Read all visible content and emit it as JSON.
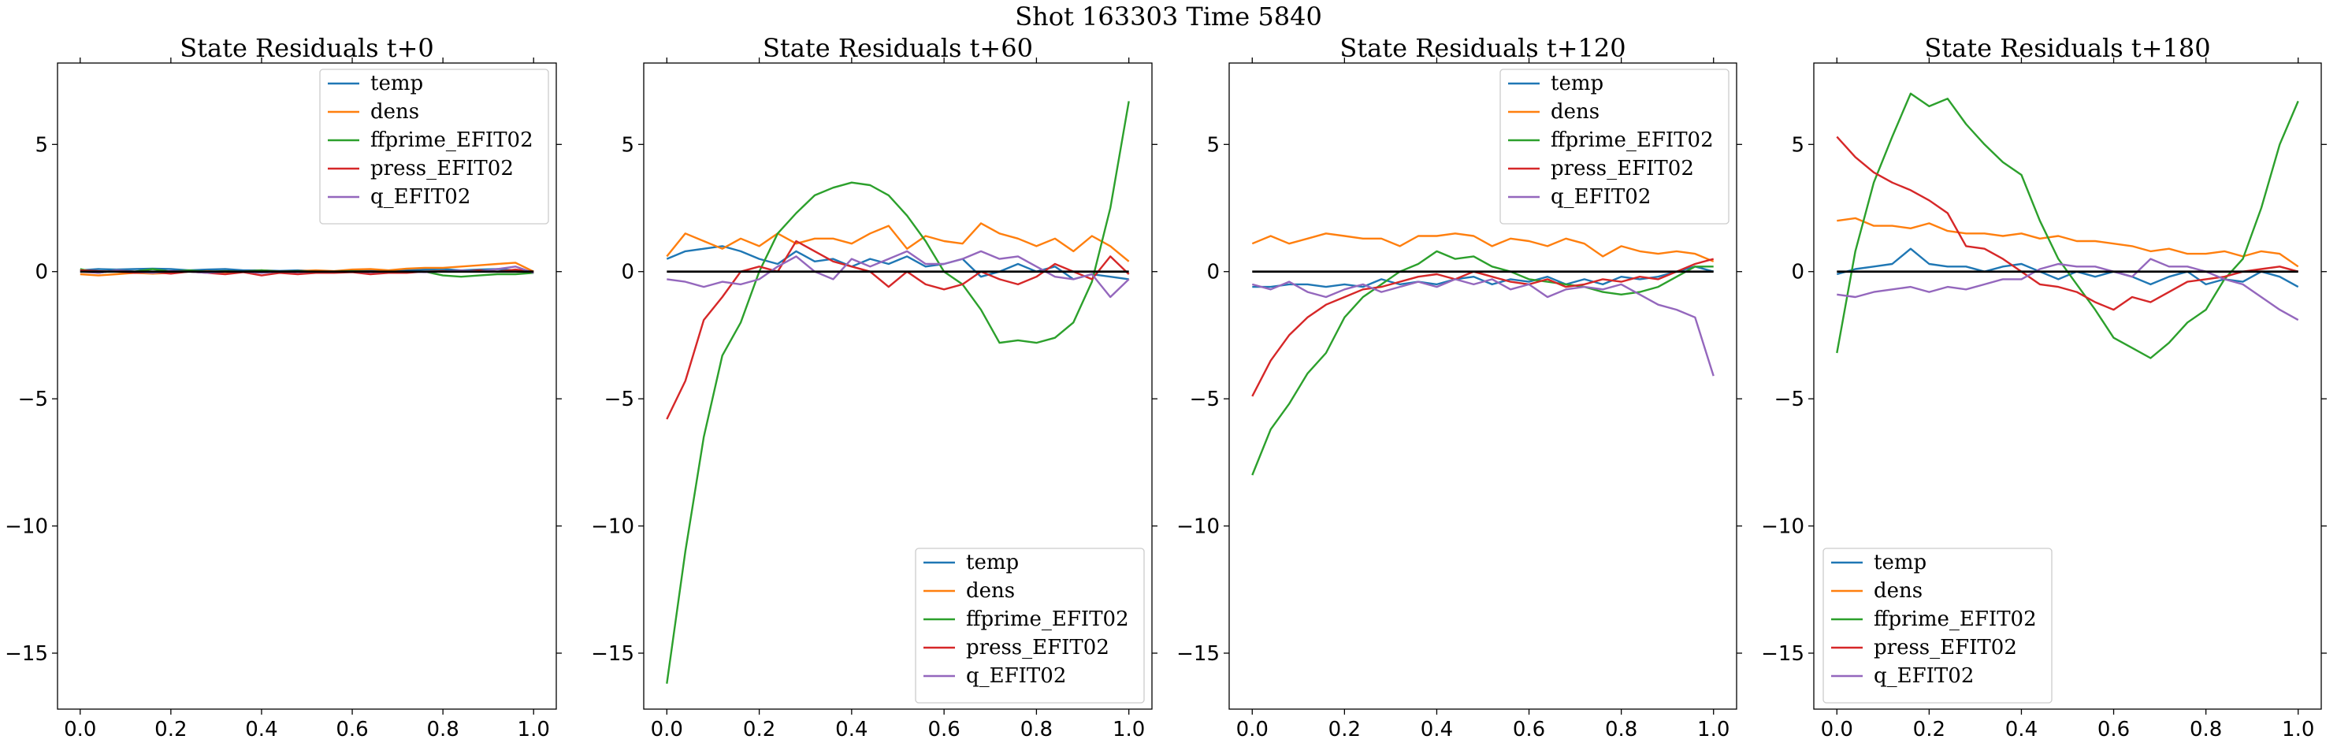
{
  "figure": {
    "suptitle": "Shot 163303   Time 5840"
  },
  "chart_data": [
    {
      "type": "line",
      "title": "State Residuals t+0",
      "xlabel": "",
      "ylabel": "",
      "xlim": [
        -0.05,
        1.05
      ],
      "ylim": [
        -17.2,
        8.2
      ],
      "xticks": [
        0.0,
        0.2,
        0.4,
        0.6,
        0.8,
        1.0
      ],
      "xticklabels": [
        "0.0",
        "0.2",
        "0.4",
        "0.6",
        "0.8",
        "1.0"
      ],
      "yticks": [
        -15,
        -10,
        -5,
        0,
        5
      ],
      "yticklabels": [
        "−15",
        "−10",
        "−5",
        "0",
        "5"
      ],
      "legend": "upper right",
      "grid": false,
      "zero_line": true,
      "x": [
        0.0,
        0.04,
        0.08,
        0.12,
        0.16,
        0.2,
        0.24,
        0.28,
        0.32,
        0.36,
        0.4,
        0.44,
        0.48,
        0.52,
        0.56,
        0.6,
        0.64,
        0.68,
        0.72,
        0.76,
        0.8,
        0.84,
        0.88,
        0.92,
        0.96,
        1.0
      ],
      "series": [
        {
          "name": "temp",
          "color": "#1f77b4",
          "values": [
            0.05,
            0.1,
            0.08,
            0.1,
            0.12,
            0.1,
            0.05,
            0.08,
            0.1,
            0.05,
            0.05,
            0.03,
            0.05,
            0.02,
            0.0,
            0.03,
            0.05,
            0.02,
            0.05,
            0.08,
            0.1,
            0.05,
            0.08,
            0.1,
            0.05,
            -0.05
          ]
        },
        {
          "name": "dens",
          "color": "#ff7f0e",
          "values": [
            -0.1,
            -0.15,
            -0.1,
            -0.05,
            -0.08,
            -0.05,
            0.0,
            0.02,
            -0.02,
            0.0,
            0.05,
            0.0,
            0.02,
            0.05,
            0.02,
            0.08,
            0.1,
            0.05,
            0.12,
            0.15,
            0.15,
            0.2,
            0.25,
            0.3,
            0.35,
            0.0
          ]
        },
        {
          "name": "ffprime_EFIT02",
          "color": "#2ca02c",
          "values": [
            0.1,
            -0.05,
            0.05,
            0.0,
            0.1,
            0.0,
            0.05,
            0.0,
            0.02,
            0.0,
            0.05,
            0.0,
            0.02,
            0.0,
            0.0,
            0.02,
            0.0,
            -0.02,
            0.0,
            0.0,
            -0.15,
            -0.2,
            -0.15,
            -0.1,
            -0.1,
            -0.05
          ]
        },
        {
          "name": "press_EFIT02",
          "color": "#d62728",
          "values": [
            0.05,
            0.02,
            0.0,
            -0.05,
            -0.02,
            -0.08,
            0.0,
            -0.05,
            -0.1,
            -0.02,
            -0.15,
            -0.05,
            -0.1,
            -0.05,
            -0.05,
            -0.02,
            -0.1,
            -0.05,
            -0.05,
            0.0,
            0.02,
            0.0,
            0.05,
            0.0,
            0.08,
            0.0
          ]
        },
        {
          "name": "q_EFIT02",
          "color": "#9467bd",
          "values": [
            0.0,
            -0.05,
            0.05,
            0.0,
            -0.05,
            0.02,
            0.0,
            -0.05,
            0.0,
            0.0,
            -0.05,
            0.0,
            -0.02,
            0.0,
            0.0,
            0.0,
            -0.02,
            0.0,
            0.0,
            -0.02,
            0.0,
            0.05,
            0.0,
            0.1,
            0.2,
            -0.05
          ]
        }
      ]
    },
    {
      "type": "line",
      "title": "State Residuals t+60",
      "xlabel": "",
      "ylabel": "",
      "xlim": [
        -0.05,
        1.05
      ],
      "ylim": [
        -17.2,
        8.2
      ],
      "xticks": [
        0.0,
        0.2,
        0.4,
        0.6,
        0.8,
        1.0
      ],
      "xticklabels": [
        "0.0",
        "0.2",
        "0.4",
        "0.6",
        "0.8",
        "1.0"
      ],
      "yticks": [
        -15,
        -10,
        -5,
        0,
        5
      ],
      "yticklabels": [
        "−15",
        "−10",
        "−5",
        "0",
        "5"
      ],
      "legend": "lower right",
      "grid": false,
      "zero_line": true,
      "x": [
        0.0,
        0.04,
        0.08,
        0.12,
        0.16,
        0.2,
        0.24,
        0.28,
        0.32,
        0.36,
        0.4,
        0.44,
        0.48,
        0.52,
        0.56,
        0.6,
        0.64,
        0.68,
        0.72,
        0.76,
        0.8,
        0.84,
        0.88,
        0.92,
        0.96,
        1.0
      ],
      "series": [
        {
          "name": "temp",
          "color": "#1f77b4",
          "values": [
            0.5,
            0.8,
            0.9,
            1.0,
            0.8,
            0.5,
            0.3,
            0.8,
            0.4,
            0.5,
            0.2,
            0.5,
            0.3,
            0.6,
            0.2,
            0.3,
            0.5,
            -0.2,
            0.0,
            0.3,
            0.0,
            0.2,
            -0.3,
            -0.1,
            -0.2,
            -0.3
          ]
        },
        {
          "name": "dens",
          "color": "#ff7f0e",
          "values": [
            0.6,
            1.5,
            1.2,
            0.9,
            1.3,
            1.0,
            1.5,
            1.1,
            1.3,
            1.3,
            1.1,
            1.5,
            1.8,
            0.9,
            1.4,
            1.2,
            1.1,
            1.9,
            1.5,
            1.3,
            1.0,
            1.3,
            0.8,
            1.4,
            1.0,
            0.4
          ]
        },
        {
          "name": "ffprime_EFIT02",
          "color": "#2ca02c",
          "values": [
            -16.2,
            -11.0,
            -6.5,
            -3.3,
            -2.0,
            0.0,
            1.5,
            2.3,
            3.0,
            3.3,
            3.5,
            3.4,
            3.0,
            2.2,
            1.2,
            0.0,
            -0.5,
            -1.5,
            -2.8,
            -2.7,
            -2.8,
            -2.6,
            -2.0,
            -0.4,
            2.5,
            6.7
          ]
        },
        {
          "name": "press_EFIT02",
          "color": "#d62728",
          "values": [
            -5.8,
            -4.3,
            -1.9,
            -1.0,
            0.0,
            0.2,
            0.0,
            1.2,
            0.8,
            0.4,
            0.2,
            0.0,
            -0.6,
            0.0,
            -0.5,
            -0.7,
            -0.5,
            0.0,
            -0.3,
            -0.5,
            -0.2,
            0.3,
            0.0,
            -0.3,
            0.6,
            -0.1
          ]
        },
        {
          "name": "q_EFIT02",
          "color": "#9467bd",
          "values": [
            -0.3,
            -0.4,
            -0.6,
            -0.4,
            -0.5,
            -0.3,
            0.2,
            0.6,
            0.0,
            -0.3,
            0.5,
            0.2,
            0.5,
            0.8,
            0.3,
            0.3,
            0.5,
            0.8,
            0.5,
            0.6,
            0.2,
            -0.2,
            -0.3,
            -0.1,
            -1.0,
            -0.3
          ]
        }
      ]
    },
    {
      "type": "line",
      "title": "State Residuals t+120",
      "xlabel": "",
      "ylabel": "",
      "xlim": [
        -0.05,
        1.05
      ],
      "ylim": [
        -17.2,
        8.2
      ],
      "xticks": [
        0.0,
        0.2,
        0.4,
        0.6,
        0.8,
        1.0
      ],
      "xticklabels": [
        "0.0",
        "0.2",
        "0.4",
        "0.6",
        "0.8",
        "1.0"
      ],
      "yticks": [
        -15,
        -10,
        -5,
        0,
        5
      ],
      "yticklabels": [
        "−15",
        "−10",
        "−5",
        "0",
        "5"
      ],
      "legend": "upper right",
      "grid": false,
      "zero_line": true,
      "x": [
        0.0,
        0.04,
        0.08,
        0.12,
        0.16,
        0.2,
        0.24,
        0.28,
        0.32,
        0.36,
        0.4,
        0.44,
        0.48,
        0.52,
        0.56,
        0.6,
        0.64,
        0.68,
        0.72,
        0.76,
        0.8,
        0.84,
        0.88,
        0.92,
        0.96,
        1.0
      ],
      "series": [
        {
          "name": "temp",
          "color": "#1f77b4",
          "values": [
            -0.6,
            -0.6,
            -0.5,
            -0.5,
            -0.6,
            -0.5,
            -0.6,
            -0.3,
            -0.5,
            -0.4,
            -0.5,
            -0.3,
            -0.2,
            -0.5,
            -0.3,
            -0.4,
            -0.2,
            -0.5,
            -0.3,
            -0.5,
            -0.2,
            -0.3,
            -0.2,
            0.0,
            0.2,
            0.0
          ]
        },
        {
          "name": "dens",
          "color": "#ff7f0e",
          "values": [
            1.1,
            1.4,
            1.1,
            1.3,
            1.5,
            1.4,
            1.3,
            1.3,
            1.0,
            1.4,
            1.4,
            1.5,
            1.4,
            1.0,
            1.3,
            1.2,
            1.0,
            1.3,
            1.1,
            0.6,
            1.0,
            0.8,
            0.7,
            0.8,
            0.7,
            0.4
          ]
        },
        {
          "name": "ffprime_EFIT02",
          "color": "#2ca02c",
          "values": [
            -8.0,
            -6.2,
            -5.2,
            -4.0,
            -3.2,
            -1.8,
            -1.0,
            -0.5,
            0.0,
            0.3,
            0.8,
            0.5,
            0.6,
            0.2,
            0.0,
            -0.3,
            -0.4,
            -0.5,
            -0.6,
            -0.8,
            -0.9,
            -0.8,
            -0.6,
            -0.2,
            0.2,
            0.2
          ]
        },
        {
          "name": "press_EFIT02",
          "color": "#d62728",
          "values": [
            -4.9,
            -3.5,
            -2.5,
            -1.8,
            -1.3,
            -1.0,
            -0.7,
            -0.6,
            -0.4,
            -0.2,
            -0.1,
            -0.3,
            0.0,
            -0.2,
            -0.4,
            -0.5,
            -0.3,
            -0.6,
            -0.5,
            -0.3,
            -0.4,
            -0.2,
            -0.3,
            0.0,
            0.3,
            0.5
          ]
        },
        {
          "name": "q_EFIT02",
          "color": "#9467bd",
          "values": [
            -0.5,
            -0.7,
            -0.4,
            -0.8,
            -1.0,
            -0.7,
            -0.5,
            -0.8,
            -0.6,
            -0.4,
            -0.6,
            -0.3,
            -0.5,
            -0.3,
            -0.7,
            -0.5,
            -1.0,
            -0.7,
            -0.6,
            -0.7,
            -0.5,
            -0.9,
            -1.3,
            -1.5,
            -1.8,
            -4.1
          ]
        }
      ]
    },
    {
      "type": "line",
      "title": "State Residuals t+180",
      "xlabel": "",
      "ylabel": "",
      "xlim": [
        -0.05,
        1.05
      ],
      "ylim": [
        -17.2,
        8.2
      ],
      "xticks": [
        0.0,
        0.2,
        0.4,
        0.6,
        0.8,
        1.0
      ],
      "xticklabels": [
        "0.0",
        "0.2",
        "0.4",
        "0.6",
        "0.8",
        "1.0"
      ],
      "yticks": [
        -15,
        -10,
        -5,
        0,
        5
      ],
      "yticklabels": [
        "−15",
        "−10",
        "−5",
        "0",
        "5"
      ],
      "legend": "lower left",
      "grid": false,
      "zero_line": true,
      "x": [
        0.0,
        0.04,
        0.08,
        0.12,
        0.16,
        0.2,
        0.24,
        0.28,
        0.32,
        0.36,
        0.4,
        0.44,
        0.48,
        0.52,
        0.56,
        0.6,
        0.64,
        0.68,
        0.72,
        0.76,
        0.8,
        0.84,
        0.88,
        0.92,
        0.96,
        1.0
      ],
      "series": [
        {
          "name": "temp",
          "color": "#1f77b4",
          "values": [
            -0.1,
            0.1,
            0.2,
            0.3,
            0.9,
            0.3,
            0.2,
            0.2,
            0.0,
            0.2,
            0.3,
            0.0,
            -0.3,
            0.0,
            -0.2,
            0.0,
            -0.2,
            -0.5,
            -0.2,
            0.0,
            -0.5,
            -0.3,
            -0.4,
            0.0,
            -0.2,
            -0.6
          ]
        },
        {
          "name": "dens",
          "color": "#ff7f0e",
          "values": [
            2.0,
            2.1,
            1.8,
            1.8,
            1.7,
            1.9,
            1.6,
            1.5,
            1.5,
            1.4,
            1.5,
            1.3,
            1.4,
            1.2,
            1.2,
            1.1,
            1.0,
            0.8,
            0.9,
            0.7,
            0.7,
            0.8,
            0.6,
            0.8,
            0.7,
            0.2
          ]
        },
        {
          "name": "ffprime_EFIT02",
          "color": "#2ca02c",
          "values": [
            -3.2,
            0.8,
            3.5,
            5.3,
            7.0,
            6.5,
            6.8,
            5.8,
            5.0,
            4.3,
            3.8,
            2.0,
            0.5,
            -0.5,
            -1.5,
            -2.6,
            -3.0,
            -3.4,
            -2.8,
            -2.0,
            -1.5,
            -0.3,
            0.5,
            2.5,
            5.0,
            6.7
          ]
        },
        {
          "name": "press_EFIT02",
          "color": "#d62728",
          "values": [
            5.3,
            4.5,
            3.9,
            3.5,
            3.2,
            2.8,
            2.3,
            1.0,
            0.9,
            0.5,
            0.0,
            -0.5,
            -0.6,
            -0.8,
            -1.2,
            -1.5,
            -1.0,
            -1.2,
            -0.8,
            -0.4,
            -0.3,
            -0.2,
            0.0,
            0.1,
            0.2,
            0.0
          ]
        },
        {
          "name": "q_EFIT02",
          "color": "#9467bd",
          "values": [
            -0.9,
            -1.0,
            -0.8,
            -0.7,
            -0.6,
            -0.8,
            -0.6,
            -0.7,
            -0.5,
            -0.3,
            -0.3,
            0.1,
            0.3,
            0.2,
            0.2,
            0.0,
            -0.2,
            0.5,
            0.2,
            0.2,
            0.0,
            -0.3,
            -0.5,
            -1.0,
            -1.5,
            -1.9
          ]
        }
      ]
    }
  ]
}
